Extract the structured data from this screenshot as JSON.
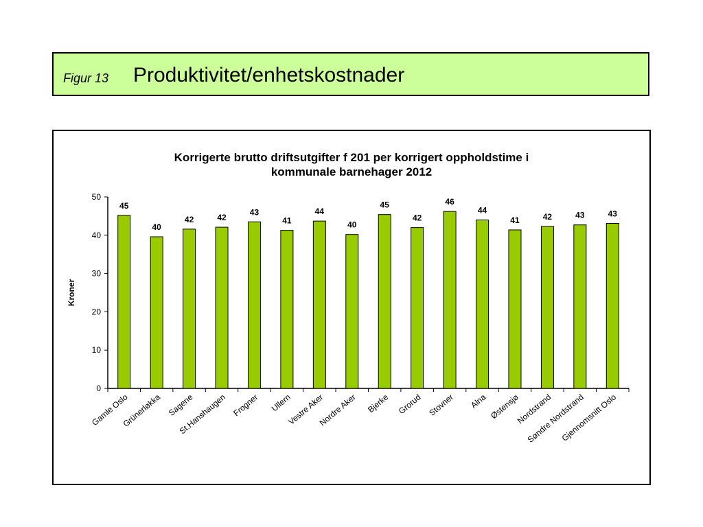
{
  "header": {
    "figure_label": "Figur 13",
    "title": "Produktivitet/enhetskostnader"
  },
  "chart_data": {
    "type": "bar",
    "title_lines": [
      "Korrigerte brutto driftsutgifter f 201 per korrigert oppholdstime i",
      "kommunale barnehager 2012"
    ],
    "ylabel": "Kroner",
    "xlabel": "",
    "ylim": [
      0,
      50
    ],
    "yticks": [
      0,
      10,
      20,
      30,
      40,
      50
    ],
    "grid": false,
    "bar_color": "#99cc00",
    "categories": [
      "Gamle Oslo",
      "Grünerløkka",
      "Sagene",
      "St.Hanshaugen",
      "Frogner",
      "Ullern",
      "Vestre Aker",
      "Nordre Aker",
      "Bjerke",
      "Grorud",
      "Stovner",
      "Alna",
      "Østensjø",
      "Nordstrand",
      "Søndre Nordstrand",
      "Gjennomsnitt Oslo"
    ],
    "values": [
      45.2,
      39.6,
      41.6,
      42.1,
      43.5,
      41.3,
      43.7,
      40.2,
      45.4,
      42.0,
      46.2,
      44.0,
      41.4,
      42.3,
      42.7,
      43.1
    ],
    "data_labels": [
      "45",
      "40",
      "42",
      "42",
      "43",
      "41",
      "44",
      "40",
      "45",
      "42",
      "46",
      "44",
      "41",
      "42",
      "43",
      "43"
    ]
  }
}
